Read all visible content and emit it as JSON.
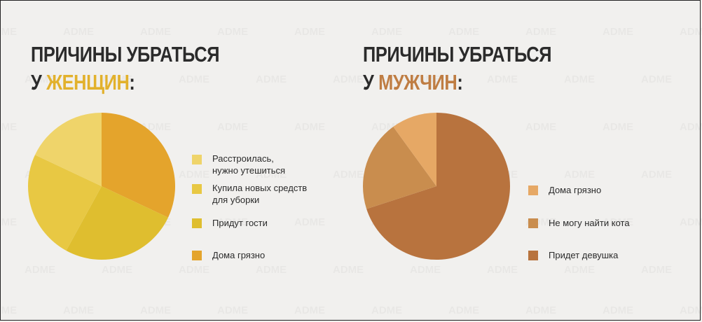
{
  "colors": {
    "background": "#f1f0ee",
    "title_text": "#2b2b2b",
    "women_accent": "#e2b12c",
    "men_accent": "#bf7d43"
  },
  "watermark": "ADME",
  "charts": {
    "women": {
      "title_line1": "ПРИЧИНЫ УБРАТЬСЯ",
      "title_prefix": "У ",
      "title_highlight": "ЖЕНЩИН",
      "title_suffix": ":"
    },
    "men": {
      "title_line1": "ПРИЧИНЫ УБРАТЬСЯ",
      "title_prefix": "У ",
      "title_highlight": "МУЖЧИН",
      "title_suffix": ":"
    }
  },
  "chart_data": [
    {
      "type": "pie",
      "title": "ПРИЧИНЫ УБРАТЬСЯ У ЖЕНЩИН:",
      "start": "12 o'clock, clockwise",
      "legend_position": "right",
      "slices": [
        {
          "label": "Дома грязно",
          "value": 32,
          "color": "#e4a42c"
        },
        {
          "label": "Придут гости",
          "value": 26,
          "color": "#dfbe2f"
        },
        {
          "label": "Купила новых средств для уборки",
          "value": 24,
          "color": "#e8c843"
        },
        {
          "label": "Расстроилась, нужно утешиться",
          "value": 18,
          "color": "#efd46a"
        }
      ],
      "legend": [
        {
          "label": "Расстроилась,\nнужно утешиться",
          "color": "#efd46a"
        },
        {
          "label": "Купила новых средств\nдля уборки",
          "color": "#e8c843"
        },
        {
          "label": "Придут гости",
          "color": "#dfbe2f"
        },
        {
          "label": "Дома грязно",
          "color": "#e4a42c"
        }
      ]
    },
    {
      "type": "pie",
      "title": "ПРИЧИНЫ УБРАТЬСЯ У МУЖЧИН:",
      "start": "12 o'clock, clockwise",
      "legend_position": "right",
      "slices": [
        {
          "label": "Придет девушка",
          "value": 70,
          "color": "#b8733e"
        },
        {
          "label": "Не могу найти кота",
          "value": 20,
          "color": "#c98d4e"
        },
        {
          "label": "Дома грязно",
          "value": 10,
          "color": "#e6a865"
        }
      ],
      "legend": [
        {
          "label": "Дома грязно",
          "color": "#e6a865"
        },
        {
          "label": "Не могу найти кота",
          "color": "#c98d4e"
        },
        {
          "label": "Придет девушка",
          "color": "#b8733e"
        }
      ]
    }
  ]
}
